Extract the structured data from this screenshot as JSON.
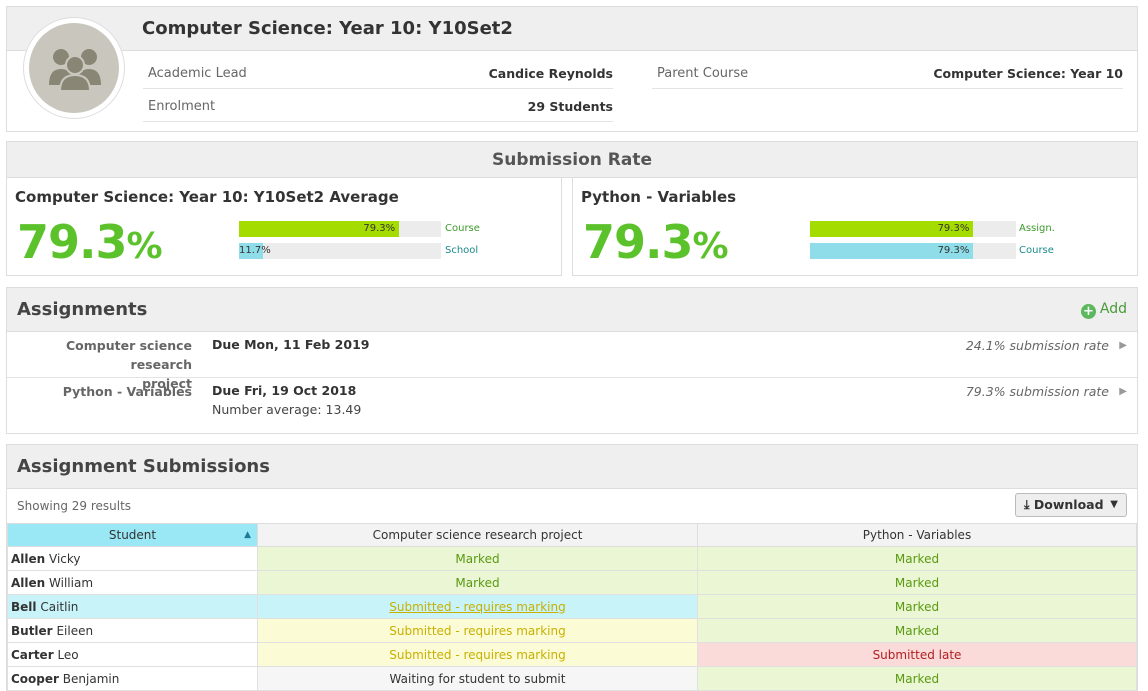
{
  "course": {
    "title": "Computer Science: Year 10: Y10Set2",
    "academic_lead_label": "Academic Lead",
    "academic_lead_value": "Candice Reynolds",
    "enrolment_label": "Enrolment",
    "enrolment_value": "29 Students",
    "parent_course_label": "Parent Course",
    "parent_course_value": "Computer Science: Year 10"
  },
  "submission_rate": {
    "heading": "Submission Rate",
    "left": {
      "title": "Computer Science: Year 10: Y10Set2 Average",
      "big_value": "79.3",
      "big_unit": "%",
      "bars": [
        {
          "value": "79.3%",
          "fraction": 0.793,
          "label": "Course",
          "color": "#a5dc00"
        },
        {
          "value": "11.7%",
          "fraction": 0.117,
          "label": "School",
          "color": "#8fdde8"
        }
      ]
    },
    "right": {
      "title": "Python - Variables",
      "big_value": "79.3",
      "big_unit": "%",
      "bars": [
        {
          "value": "79.3%",
          "fraction": 0.793,
          "label": "Assign.",
          "color": "#a5dc00"
        },
        {
          "value": "79.3%",
          "fraction": 0.793,
          "label": "Course",
          "color": "#8fdde8"
        }
      ]
    }
  },
  "assignments": {
    "heading": "Assignments",
    "add_label": "Add",
    "rows": [
      {
        "name_line1": "Computer science research",
        "name_line2": "project",
        "due": "Due Mon, 11 Feb 2019",
        "extra": "",
        "rate": "24.1% submission rate"
      },
      {
        "name_line1": "Python - Variables",
        "name_line2": "",
        "due": "Due Fri, 19 Oct 2018",
        "extra": "Number average: 13.49",
        "rate": "79.3% submission rate"
      }
    ]
  },
  "submissions": {
    "heading": "Assignment Submissions",
    "showing": "Showing 29 results",
    "download_label": "Download",
    "columns": [
      "Student",
      "Computer science research project",
      "Python - Variables"
    ],
    "rows": [
      {
        "last": "Allen",
        "first": "Vicky",
        "c1": "Marked",
        "c2": "Marked"
      },
      {
        "last": "Allen",
        "first": "William",
        "c1": "Marked",
        "c2": "Marked"
      },
      {
        "last": "Bell",
        "first": "Caitlin",
        "c1": "Submitted - requires marking",
        "c2": "Marked"
      },
      {
        "last": "Butler",
        "first": "Eileen",
        "c1": "Submitted - requires marking",
        "c2": "Marked"
      },
      {
        "last": "Carter",
        "first": "Leo",
        "c1": "Submitted - requires marking",
        "c2": "Submitted late"
      },
      {
        "last": "Cooper",
        "first": "Benjamin",
        "c1": "Waiting for student to submit",
        "c2": "Marked"
      }
    ]
  }
}
